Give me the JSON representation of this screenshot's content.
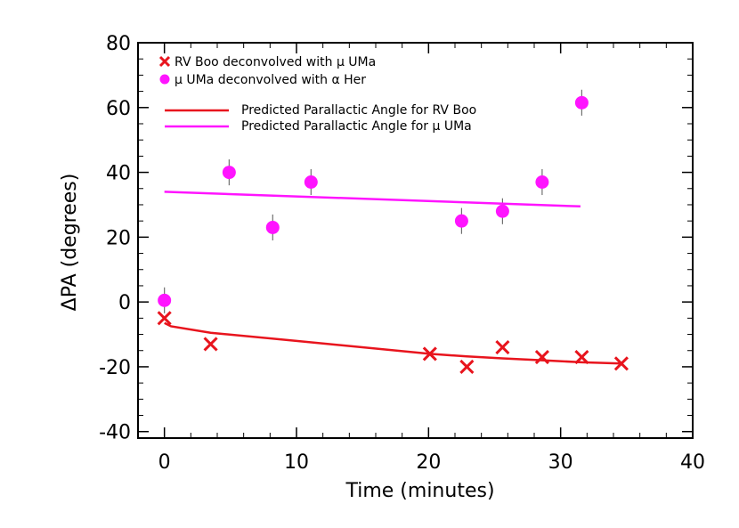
{
  "chart_data": {
    "type": "scatter",
    "title": "",
    "xlabel": "Time (minutes)",
    "ylabel": "ΔPA (degrees)",
    "xlim": [
      -2,
      40
    ],
    "ylim": [
      -42,
      80
    ],
    "xticks": [
      0,
      10,
      20,
      30,
      40
    ],
    "yticks": [
      -40,
      -20,
      0,
      20,
      40,
      60,
      80
    ],
    "grid": false,
    "legend_position": "top-left",
    "series": [
      {
        "name": "RV Boo deconvolved with μ UMa",
        "kind": "points",
        "marker": "x",
        "color": "#e8141d",
        "x": [
          0.0,
          3.5,
          20.1,
          22.9,
          25.6,
          28.6,
          31.6,
          34.6
        ],
        "y": [
          -5,
          -13,
          -16,
          -20,
          -14,
          -17,
          -17,
          -19
        ]
      },
      {
        "name": "μ UMa deconvolved with α Her",
        "kind": "points",
        "marker": "circle",
        "color": "#ff14ff",
        "errbar_color": "#707070",
        "x": [
          0.0,
          4.9,
          8.2,
          11.1,
          22.5,
          25.6,
          28.6,
          31.6
        ],
        "y": [
          0.5,
          40,
          23,
          37,
          25,
          28,
          37,
          61.5
        ],
        "yerr": [
          4,
          4,
          4,
          4,
          4,
          4,
          4,
          4
        ]
      },
      {
        "name": "Predicted Parallactic Angle for RV Boo",
        "kind": "line",
        "color": "#e8141d",
        "x": [
          0.0,
          0.5,
          3.5,
          10,
          20.1,
          22.9,
          25.6,
          28.6,
          31.6,
          34.6
        ],
        "y": [
          -6.5,
          -7.5,
          -9.5,
          -12,
          -16,
          -16.8,
          -17.4,
          -18,
          -18.6,
          -19
        ]
      },
      {
        "name": "Predicted Parallactic Angle for μ UMa",
        "kind": "line",
        "color": "#ff14ff",
        "x": [
          0.0,
          31.5
        ],
        "y": [
          34,
          29.5
        ]
      }
    ]
  }
}
